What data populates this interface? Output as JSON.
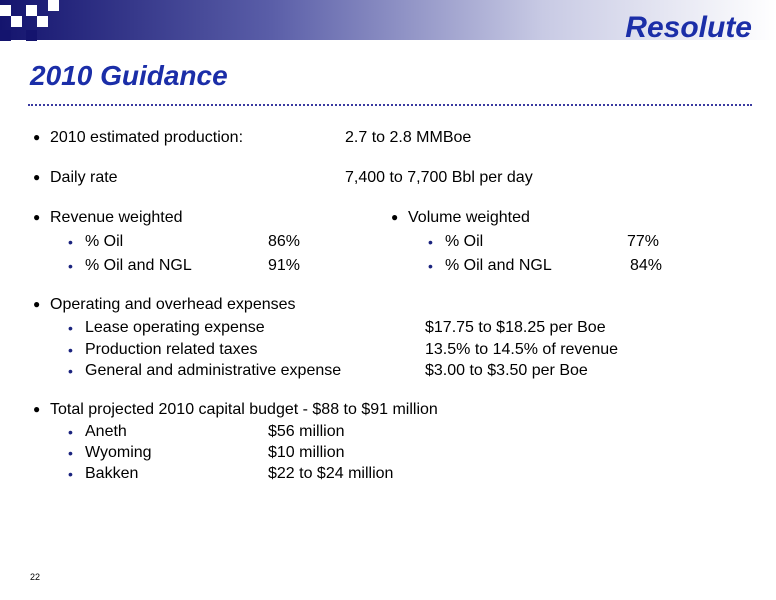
{
  "header": {
    "logo": "Resolute",
    "title": "2010 Guidance"
  },
  "items": [
    {
      "label": "2010 estimated production:",
      "value": "2.7 to 2.8 MMBoe"
    },
    {
      "label": "Daily rate",
      "value": "7,400 to 7,700 Bbl per day"
    }
  ],
  "weighted": {
    "revenue": {
      "label": "Revenue weighted",
      "rows": [
        [
          "% Oil",
          "86%"
        ],
        [
          "% Oil and NGL",
          "91%"
        ]
      ]
    },
    "volume": {
      "label": "Volume weighted",
      "rows": [
        [
          "% Oil",
          "77%"
        ],
        [
          "% Oil and NGL",
          "84%"
        ]
      ]
    }
  },
  "expenses": {
    "label": "Operating and overhead expenses",
    "rows": [
      [
        "Lease operating expense",
        "$17.75 to $18.25 per Boe"
      ],
      [
        "Production related taxes",
        "13.5% to 14.5% of revenue"
      ],
      [
        "General and administrative expense",
        "$3.00 to $3.50 per Boe"
      ]
    ]
  },
  "capital": {
    "label": "Total projected 2010 capital budget - $88 to $91 million",
    "rows": [
      [
        "Aneth",
        "$56 million"
      ],
      [
        "Wyoming",
        "$10 million"
      ],
      [
        "Bakken",
        "$22 to $24 million"
      ]
    ]
  },
  "footer": {
    "page": "22"
  }
}
